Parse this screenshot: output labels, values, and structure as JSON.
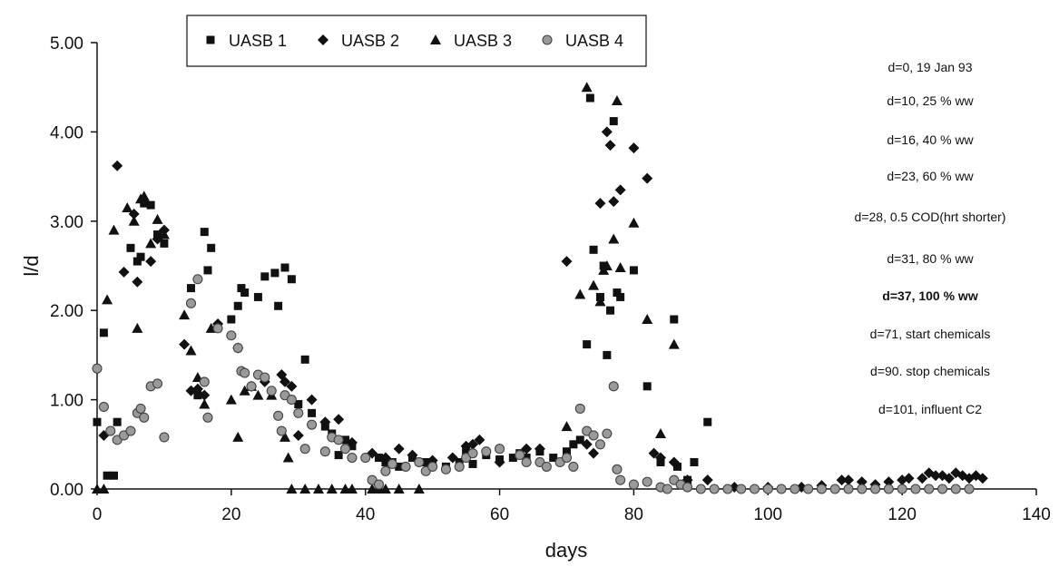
{
  "chart_data": {
    "type": "scatter",
    "title": "",
    "xlabel": "days",
    "ylabel": "l/d",
    "xlim": [
      0,
      140
    ],
    "ylim": [
      0,
      5
    ],
    "x_ticks": [
      0,
      20,
      40,
      60,
      80,
      100,
      120,
      140
    ],
    "x_tick_labels": [
      "0",
      "20",
      "40",
      "60",
      "80",
      "100",
      "120",
      "140"
    ],
    "y_ticks": [
      0,
      1,
      2,
      3,
      4,
      5
    ],
    "y_tick_labels": [
      "0.00",
      "1.00",
      "2.00",
      "3.00",
      "4.00",
      "5.00"
    ],
    "grid": false,
    "legend_position": "top",
    "annotations": [
      {
        "text": "d=0, 19 Jan 93",
        "bold": false
      },
      {
        "text": "d=10, 25 % ww",
        "bold": false
      },
      {
        "text": "d=16, 40 % ww",
        "bold": false
      },
      {
        "text": "d=23, 60 % ww",
        "bold": false
      },
      {
        "text": "d=28, 0.5 COD(hrt shorter)",
        "bold": false
      },
      {
        "text": "d=31, 80 % ww",
        "bold": false
      },
      {
        "text": "d=37, 100 % ww",
        "bold": true
      },
      {
        "text": "d=71, start chemicals",
        "bold": false
      },
      {
        "text": "d=90. stop chemicals",
        "bold": false
      },
      {
        "text": "d=101, influent C2",
        "bold": false
      }
    ],
    "series": [
      {
        "name": "UASB 1",
        "marker": "square",
        "color": "#111111",
        "points": [
          [
            0,
            0.75
          ],
          [
            1,
            1.75
          ],
          [
            1.5,
            0.15
          ],
          [
            2.5,
            0.15
          ],
          [
            3,
            0.75
          ],
          [
            5,
            2.7
          ],
          [
            6,
            2.55
          ],
          [
            6.5,
            2.6
          ],
          [
            7,
            3.2
          ],
          [
            8,
            3.18
          ],
          [
            9,
            2.85
          ],
          [
            10,
            2.75
          ],
          [
            14,
            2.25
          ],
          [
            15,
            1.05
          ],
          [
            16,
            2.88
          ],
          [
            16.5,
            2.45
          ],
          [
            17,
            2.7
          ],
          [
            20,
            1.9
          ],
          [
            21,
            2.05
          ],
          [
            21.5,
            2.25
          ],
          [
            22,
            2.2
          ],
          [
            24,
            2.15
          ],
          [
            25,
            2.38
          ],
          [
            26.5,
            2.42
          ],
          [
            27,
            2.05
          ],
          [
            28,
            2.48
          ],
          [
            29,
            2.35
          ],
          [
            30,
            0.95
          ],
          [
            31,
            1.45
          ],
          [
            32,
            0.85
          ],
          [
            34,
            0.7
          ],
          [
            35,
            0.62
          ],
          [
            36,
            0.38
          ],
          [
            37,
            0.55
          ],
          [
            38,
            0.48
          ],
          [
            42,
            0.35
          ],
          [
            43,
            0.3
          ],
          [
            44,
            0.3
          ],
          [
            45,
            0.25
          ],
          [
            47,
            0.35
          ],
          [
            49,
            0.3
          ],
          [
            50,
            0.28
          ],
          [
            52,
            0.25
          ],
          [
            54,
            0.3
          ],
          [
            55,
            0.42
          ],
          [
            56,
            0.28
          ],
          [
            58,
            0.38
          ],
          [
            60,
            0.33
          ],
          [
            62,
            0.35
          ],
          [
            63,
            0.4
          ],
          [
            64,
            0.35
          ],
          [
            66,
            0.42
          ],
          [
            68,
            0.35
          ],
          [
            70,
            0.42
          ],
          [
            71,
            0.5
          ],
          [
            72,
            0.55
          ],
          [
            73,
            1.62
          ],
          [
            73.5,
            4.38
          ],
          [
            74,
            2.68
          ],
          [
            75,
            2.15
          ],
          [
            75.5,
            2.5
          ],
          [
            76,
            1.5
          ],
          [
            76.5,
            2.0
          ],
          [
            77,
            4.12
          ],
          [
            77.5,
            2.2
          ],
          [
            78,
            2.15
          ],
          [
            80,
            2.45
          ],
          [
            82,
            1.15
          ],
          [
            84,
            0.3
          ],
          [
            86,
            1.9
          ],
          [
            86.5,
            0.25
          ],
          [
            88,
            0.1
          ],
          [
            89,
            0.3
          ],
          [
            91,
            0.75
          ]
        ]
      },
      {
        "name": "UASB 2",
        "marker": "diamond",
        "color": "#111111",
        "points": [
          [
            1,
            0.6
          ],
          [
            3,
            3.62
          ],
          [
            4,
            2.43
          ],
          [
            5.5,
            3.08
          ],
          [
            6,
            2.32
          ],
          [
            7,
            3.22
          ],
          [
            8,
            2.55
          ],
          [
            9,
            2.8
          ],
          [
            10,
            2.9
          ],
          [
            13,
            1.62
          ],
          [
            14,
            1.1
          ],
          [
            15,
            1.12
          ],
          [
            16,
            1.05
          ],
          [
            18,
            1.85
          ],
          [
            21,
            1.58
          ],
          [
            23,
            1.15
          ],
          [
            25,
            1.2
          ],
          [
            27.5,
            1.28
          ],
          [
            28,
            1.2
          ],
          [
            29,
            1.15
          ],
          [
            30,
            0.6
          ],
          [
            32,
            1.0
          ],
          [
            34,
            0.75
          ],
          [
            36,
            0.78
          ],
          [
            38,
            0.52
          ],
          [
            41,
            0.4
          ],
          [
            43,
            0.35
          ],
          [
            45,
            0.45
          ],
          [
            47,
            0.38
          ],
          [
            50,
            0.32
          ],
          [
            53,
            0.35
          ],
          [
            55,
            0.48
          ],
          [
            56,
            0.5
          ],
          [
            57,
            0.55
          ],
          [
            60,
            0.3
          ],
          [
            64,
            0.45
          ],
          [
            66,
            0.45
          ],
          [
            70,
            2.55
          ],
          [
            73,
            0.5
          ],
          [
            74,
            0.4
          ],
          [
            75,
            3.2
          ],
          [
            76,
            4.0
          ],
          [
            76.5,
            3.85
          ],
          [
            77,
            3.22
          ],
          [
            78,
            3.35
          ],
          [
            80,
            3.82
          ],
          [
            82,
            3.48
          ],
          [
            83,
            0.4
          ],
          [
            84,
            0.35
          ],
          [
            86,
            0.3
          ],
          [
            88,
            0.1
          ],
          [
            91,
            0.1
          ],
          [
            95,
            0.02
          ],
          [
            100,
            0.02
          ],
          [
            105,
            0.02
          ],
          [
            108,
            0.04
          ],
          [
            111,
            0.1
          ],
          [
            112,
            0.1
          ],
          [
            114,
            0.08
          ],
          [
            116,
            0.05
          ],
          [
            118,
            0.08
          ],
          [
            120,
            0.1
          ],
          [
            121,
            0.12
          ],
          [
            123,
            0.12
          ],
          [
            124,
            0.18
          ],
          [
            125,
            0.15
          ],
          [
            126,
            0.15
          ],
          [
            127,
            0.12
          ],
          [
            128,
            0.18
          ],
          [
            129,
            0.15
          ],
          [
            130,
            0.12
          ],
          [
            131,
            0.15
          ],
          [
            132,
            0.12
          ]
        ]
      },
      {
        "name": "UASB 3",
        "marker": "triangle",
        "color": "#111111",
        "points": [
          [
            0,
            0.0
          ],
          [
            1,
            0.0
          ],
          [
            1.5,
            2.12
          ],
          [
            2.5,
            2.9
          ],
          [
            4.5,
            3.15
          ],
          [
            5.5,
            3.0
          ],
          [
            6,
            1.8
          ],
          [
            6.5,
            3.25
          ],
          [
            7,
            3.28
          ],
          [
            8,
            2.75
          ],
          [
            9,
            3.02
          ],
          [
            10,
            2.85
          ],
          [
            13,
            1.95
          ],
          [
            14,
            1.55
          ],
          [
            15,
            1.25
          ],
          [
            16,
            0.95
          ],
          [
            17,
            1.8
          ],
          [
            20,
            1.0
          ],
          [
            21,
            0.58
          ],
          [
            22,
            1.1
          ],
          [
            23,
            1.15
          ],
          [
            24,
            1.05
          ],
          [
            26,
            1.05
          ],
          [
            28,
            0.58
          ],
          [
            28.5,
            0.35
          ],
          [
            29,
            0.0
          ],
          [
            31,
            0.0
          ],
          [
            33,
            0.0
          ],
          [
            35,
            0.0
          ],
          [
            37,
            0.0
          ],
          [
            38,
            0.0
          ],
          [
            41,
            0.0
          ],
          [
            42,
            0.0
          ],
          [
            43,
            0.0
          ],
          [
            45,
            0.0
          ],
          [
            48,
            0.0
          ],
          [
            70,
            0.7
          ],
          [
            72,
            2.18
          ],
          [
            73,
            4.5
          ],
          [
            74,
            2.28
          ],
          [
            75,
            2.1
          ],
          [
            75.5,
            2.45
          ],
          [
            76,
            2.5
          ],
          [
            77,
            2.8
          ],
          [
            77.5,
            4.35
          ],
          [
            78,
            2.48
          ],
          [
            80,
            2.98
          ],
          [
            82,
            1.9
          ],
          [
            84,
            0.62
          ],
          [
            86,
            1.62
          ]
        ]
      },
      {
        "name": "UASB 4",
        "marker": "circle",
        "color": "#777777",
        "points": [
          [
            0,
            1.35
          ],
          [
            1,
            0.92
          ],
          [
            2,
            0.65
          ],
          [
            3,
            0.55
          ],
          [
            4,
            0.6
          ],
          [
            5,
            0.65
          ],
          [
            6,
            0.85
          ],
          [
            6.5,
            0.9
          ],
          [
            7,
            0.8
          ],
          [
            8,
            1.15
          ],
          [
            9,
            1.18
          ],
          [
            10,
            0.58
          ],
          [
            14,
            2.08
          ],
          [
            15,
            2.35
          ],
          [
            16,
            1.2
          ],
          [
            16.5,
            0.8
          ],
          [
            18,
            1.8
          ],
          [
            20,
            1.72
          ],
          [
            21,
            1.58
          ],
          [
            21.5,
            1.32
          ],
          [
            22,
            1.3
          ],
          [
            23,
            1.15
          ],
          [
            24,
            1.28
          ],
          [
            25,
            1.25
          ],
          [
            26,
            1.1
          ],
          [
            27,
            0.82
          ],
          [
            27.5,
            0.65
          ],
          [
            28,
            1.05
          ],
          [
            29,
            1.0
          ],
          [
            30,
            0.85
          ],
          [
            31,
            0.45
          ],
          [
            32,
            0.72
          ],
          [
            34,
            0.42
          ],
          [
            35,
            0.58
          ],
          [
            36,
            0.55
          ],
          [
            37,
            0.45
          ],
          [
            38,
            0.35
          ],
          [
            40,
            0.35
          ],
          [
            41,
            0.1
          ],
          [
            42,
            0.05
          ],
          [
            43,
            0.2
          ],
          [
            44,
            0.28
          ],
          [
            46,
            0.25
          ],
          [
            48,
            0.3
          ],
          [
            49,
            0.2
          ],
          [
            50,
            0.25
          ],
          [
            52,
            0.22
          ],
          [
            54,
            0.25
          ],
          [
            55,
            0.35
          ],
          [
            56,
            0.4
          ],
          [
            58,
            0.42
          ],
          [
            60,
            0.45
          ],
          [
            63,
            0.38
          ],
          [
            64,
            0.3
          ],
          [
            66,
            0.3
          ],
          [
            67,
            0.25
          ],
          [
            69,
            0.3
          ],
          [
            70,
            0.35
          ],
          [
            71,
            0.25
          ],
          [
            72,
            0.9
          ],
          [
            73,
            0.65
          ],
          [
            74,
            0.6
          ],
          [
            75,
            0.5
          ],
          [
            76,
            0.62
          ],
          [
            77,
            1.15
          ],
          [
            77.5,
            0.22
          ],
          [
            78,
            0.1
          ],
          [
            80,
            0.05
          ],
          [
            82,
            0.08
          ],
          [
            84,
            0.02
          ],
          [
            85,
            0.0
          ],
          [
            86,
            0.1
          ],
          [
            87,
            0.05
          ],
          [
            88,
            0.02
          ],
          [
            90,
            0.0
          ],
          [
            92,
            0.0
          ],
          [
            94,
            0.0
          ],
          [
            96,
            0.0
          ],
          [
            98,
            0.0
          ],
          [
            100,
            0.0
          ],
          [
            102,
            0.0
          ],
          [
            104,
            0.0
          ],
          [
            106,
            0.0
          ],
          [
            108,
            0.0
          ],
          [
            110,
            0.0
          ],
          [
            112,
            0.0
          ],
          [
            114,
            0.0
          ],
          [
            116,
            0.0
          ],
          [
            118,
            0.0
          ],
          [
            120,
            0.0
          ],
          [
            122,
            0.0
          ],
          [
            124,
            0.0
          ],
          [
            126,
            0.0
          ],
          [
            128,
            0.0
          ],
          [
            130,
            0.0
          ]
        ]
      }
    ]
  }
}
